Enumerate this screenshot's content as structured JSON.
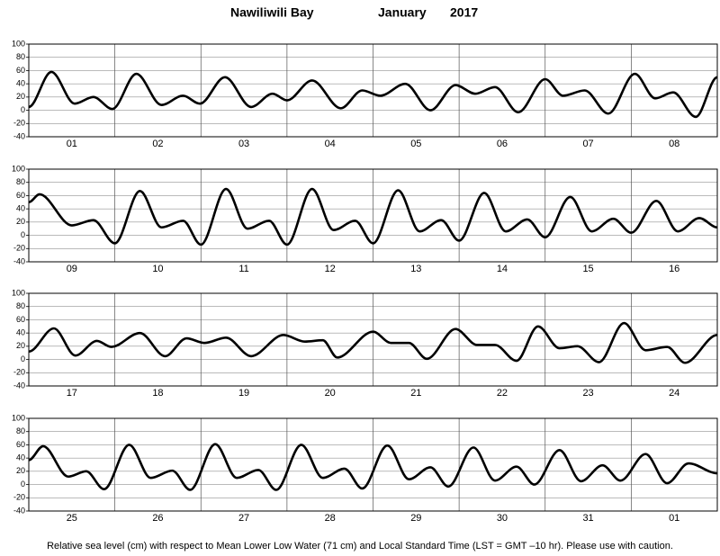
{
  "title": "Nawiliwili Bay",
  "month": "January",
  "year": "2017",
  "note": "Relative sea level (cm) with respect to Mean Lower Low Water (71 cm) and Local Standard Time (LST = GMT –10 hr). Please use with caution.",
  "chart_data": [
    {
      "type": "line",
      "color": "#000000",
      "grid": true,
      "xlim": [
        0,
        192
      ],
      "ylim": [
        -40,
        100
      ],
      "yticks": [
        100,
        80,
        60,
        40,
        20,
        0,
        -20,
        -40
      ],
      "categories": [
        "01",
        "02",
        "03",
        "04",
        "05",
        "06",
        "07",
        "08"
      ],
      "x": [
        0,
        6.3,
        12.8,
        18,
        23.3,
        30,
        37,
        43,
        47.7,
        54.7,
        62,
        68,
        72,
        79,
        87,
        93,
        98,
        105,
        112,
        119,
        124.5,
        130,
        136.5,
        144,
        149,
        155,
        161.6,
        169,
        174.7,
        179.7,
        186,
        192
      ],
      "values": [
        5,
        58,
        10,
        20,
        2,
        55,
        8,
        22,
        10,
        50,
        5,
        25,
        15,
        45,
        3,
        30,
        22,
        40,
        0,
        38,
        25,
        35,
        -3,
        47,
        22,
        30,
        -5,
        55,
        18,
        27,
        -10,
        50
      ]
    },
    {
      "type": "line",
      "color": "#000000",
      "grid": true,
      "xlim": [
        0,
        192
      ],
      "ylim": [
        -40,
        100
      ],
      "yticks": [
        100,
        80,
        60,
        40,
        20,
        0,
        -20,
        -40
      ],
      "categories": [
        "09",
        "10",
        "11",
        "12",
        "13",
        "14",
        "15",
        "16"
      ],
      "x": [
        0,
        3,
        12,
        18,
        24,
        31,
        37,
        43,
        48,
        55,
        61,
        67,
        72,
        79,
        85,
        91,
        96,
        103,
        109,
        115,
        120,
        127,
        133,
        139,
        144,
        151,
        157,
        163,
        168,
        175,
        181,
        187,
        192
      ],
      "values": [
        50,
        62,
        15,
        23,
        -12,
        67,
        12,
        22,
        -14,
        70,
        10,
        22,
        -14,
        70,
        8,
        22,
        -12,
        68,
        6,
        23,
        -8,
        64,
        6,
        24,
        -3,
        58,
        6,
        25,
        4,
        52,
        6,
        26,
        12
      ]
    },
    {
      "type": "line",
      "color": "#000000",
      "grid": true,
      "xlim": [
        0,
        192
      ],
      "ylim": [
        -40,
        100
      ],
      "yticks": [
        100,
        80,
        60,
        40,
        20,
        0,
        -20,
        -40
      ],
      "categories": [
        "17",
        "18",
        "19",
        "20",
        "21",
        "22",
        "23",
        "24"
      ],
      "x": [
        0,
        7,
        13,
        19,
        23,
        31,
        38,
        44,
        49,
        55,
        62,
        71,
        77,
        82,
        86,
        96,
        101,
        106,
        111,
        119,
        125,
        130,
        136,
        142,
        148,
        153,
        159,
        166,
        172,
        178,
        183,
        192
      ],
      "values": [
        12,
        47,
        6,
        28,
        19,
        40,
        5,
        32,
        25,
        33,
        5,
        37,
        27,
        29,
        3,
        42,
        25,
        25,
        1,
        46,
        22,
        22,
        -2,
        50,
        17,
        20,
        -4,
        55,
        14,
        19,
        -5,
        37
      ]
    },
    {
      "type": "line",
      "color": "#000000",
      "grid": true,
      "xlim": [
        0,
        192
      ],
      "ylim": [
        -40,
        100
      ],
      "yticks": [
        100,
        80,
        60,
        40,
        20,
        0,
        -20,
        -40
      ],
      "categories": [
        "25",
        "26",
        "27",
        "28",
        "29",
        "30",
        "31",
        "01"
      ],
      "x": [
        0,
        4,
        11,
        16,
        21,
        28,
        34,
        40,
        45,
        52,
        58,
        64,
        69,
        76,
        82,
        88,
        93,
        100,
        106,
        112,
        117,
        124,
        130,
        136,
        141,
        148,
        154,
        160,
        165,
        172,
        178,
        184,
        192
      ],
      "values": [
        37,
        58,
        12,
        20,
        -7,
        60,
        10,
        21,
        -8,
        61,
        10,
        22,
        -8,
        60,
        10,
        24,
        -6,
        59,
        8,
        26,
        -3,
        56,
        6,
        27,
        0,
        52,
        5,
        29,
        6,
        46,
        2,
        32,
        17
      ]
    }
  ]
}
